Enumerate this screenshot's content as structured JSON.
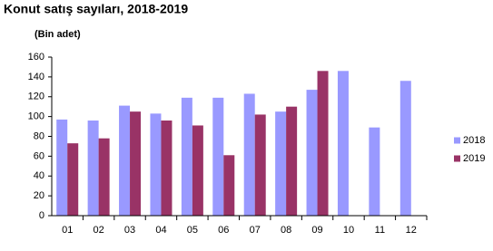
{
  "chart_data": {
    "type": "bar",
    "title": "Konut satış sayıları, 2018-2019",
    "y_label": "(Bin adet)",
    "categories": [
      "01",
      "02",
      "03",
      "04",
      "05",
      "06",
      "07",
      "08",
      "09",
      "10",
      "11",
      "12"
    ],
    "series": [
      {
        "name": "2018",
        "color": "#9999ff",
        "values": [
          97,
          96,
          111,
          103,
          119,
          119,
          123,
          105,
          127,
          146,
          89,
          136
        ]
      },
      {
        "name": "2019",
        "color": "#993366",
        "values": [
          73,
          78,
          105,
          96,
          91,
          61,
          102,
          110,
          146,
          null,
          null,
          null
        ]
      }
    ],
    "ylim": [
      0,
      160
    ],
    "yticks": [
      0,
      20,
      40,
      60,
      80,
      100,
      120,
      140,
      160
    ],
    "grid": false,
    "legend": "right"
  }
}
